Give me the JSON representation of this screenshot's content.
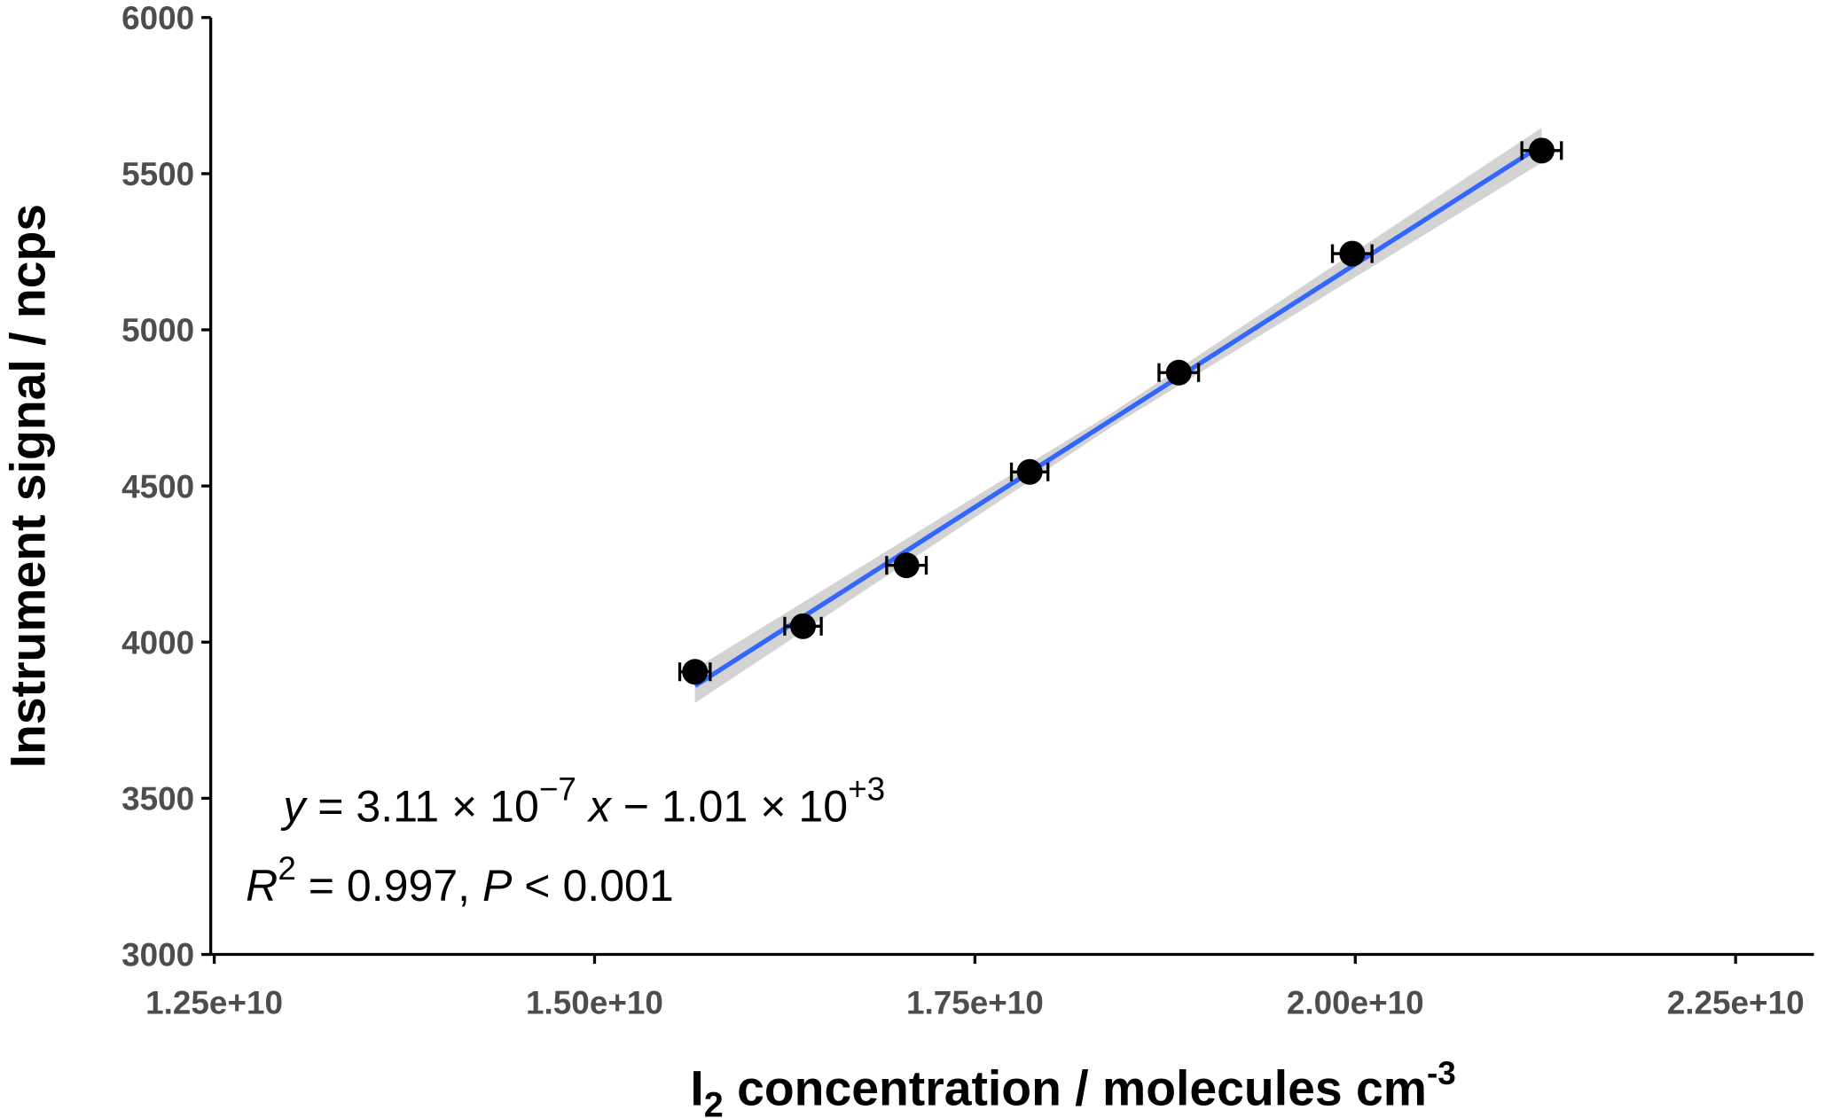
{
  "chart_data": {
    "type": "scatter",
    "x_label": [
      "I",
      "2",
      " concentration / molecules cm",
      "-3"
    ],
    "y_label": "Instrument signal / ncps",
    "xlim": [
      12500000000,
      22500000000
    ],
    "xticks": [
      {
        "value": 12500000000,
        "label": "1.25e+10"
      },
      {
        "value": 15000000000,
        "label": "1.50e+10"
      },
      {
        "value": 17500000000,
        "label": "1.75e+10"
      },
      {
        "value": 20000000000,
        "label": "2.00e+10"
      },
      {
        "value": 22500000000,
        "label": "2.25e+10"
      }
    ],
    "ylim": [
      3000,
      6000
    ],
    "yticks": [
      3000,
      3500,
      4000,
      4500,
      5000,
      5500,
      6000
    ],
    "points": {
      "color": "#000000",
      "x": [
        15660000000,
        16370000000,
        17050000000,
        17860000000,
        18840000000,
        19980000000,
        21225000000
      ],
      "y": [
        3905,
        4051,
        4246,
        4545,
        4863,
        5244,
        5574
      ],
      "xerr": [
        100000000,
        120000000,
        130000000,
        120000000,
        130000000,
        130000000,
        130000000
      ]
    },
    "fit": {
      "color": "#3366ff",
      "x": [
        15660000000,
        21225000000
      ],
      "y": [
        3860,
        5591
      ]
    },
    "ci": {
      "color": "#d3d3d3",
      "x": [
        15660000000,
        18400000000,
        21225000000
      ],
      "lower": [
        3805,
        4690,
        5535
      ],
      "upper": [
        3915,
        4734,
        5647
      ]
    },
    "equation": [
      "y",
      " = 3.11 × 10",
      "−7",
      " x",
      " − 1.01 × 10",
      "+3"
    ],
    "stats": [
      "R",
      "2",
      " = 0.997, ",
      "P",
      " < 0.001"
    ]
  }
}
